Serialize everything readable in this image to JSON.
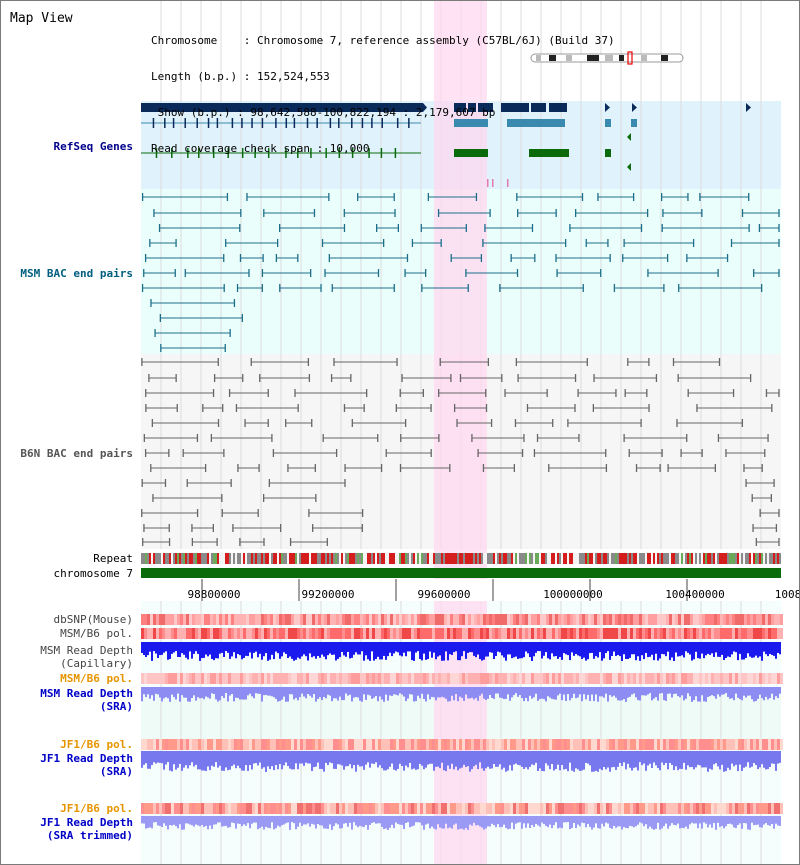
{
  "title": "Map View",
  "info": {
    "line1": "Chromosome    : Chromosome 7, reference assembly (C57BL/6J) (Build 37)",
    "line2": "Length (b.p.) : 152,524,553",
    "line3": " Show (b.p.) : 98,642,588-100,822,194 : 2,179,607 bp",
    "line4": "Read coverage check span : 10,000"
  },
  "tracks": {
    "refseq": "RefSeq Genes",
    "msm_bac": "MSM BAC end pairs",
    "b6n_bac": "B6N BAC end pairs",
    "repeat": "Repeat",
    "chromosome": "chromosome 7",
    "dbsnp": "dbSNP(Mouse)",
    "msm_b6_pol_1": "MSM/B6 pol.",
    "msm_depth_cap_1": "MSM Read Depth",
    "msm_depth_cap_2": "(Capillary)",
    "msm_b6_pol_2": "MSM/B6 pol.",
    "msm_depth_sra_1": "MSM Read Depth",
    "msm_depth_sra_2": "(SRA)",
    "jf1_b6_pol_1": "JF1/B6 pol.",
    "jf1_depth_sra_1": "JF1 Read Depth",
    "jf1_depth_sra_2": "(SRA)",
    "jf1_b6_pol_2": "JF1/B6 pol.",
    "jf1_depth_trim_1": "JF1 Read Depth",
    "jf1_depth_trim_2": "(SRA trimmed)"
  },
  "axis": {
    "ticks": [
      "98800000",
      "99200000",
      "99600000",
      "100000000",
      "100400000",
      "1008"
    ]
  },
  "colors": {
    "refseq_label": "#00008b",
    "msm_label": "#005f7f",
    "b6n_label": "#555555",
    "pol_label": "#e69500",
    "depth_label": "#0000c8",
    "gene_dark": "#0a2a5a",
    "gene_mid": "#3a8ab0",
    "gene_green": "#0b6b0b",
    "msm_pair": "#1e6e8a",
    "b6n_pair": "#666666",
    "chrom_bar": "#0b6b0b",
    "highlight": "#ffd8f0"
  }
}
